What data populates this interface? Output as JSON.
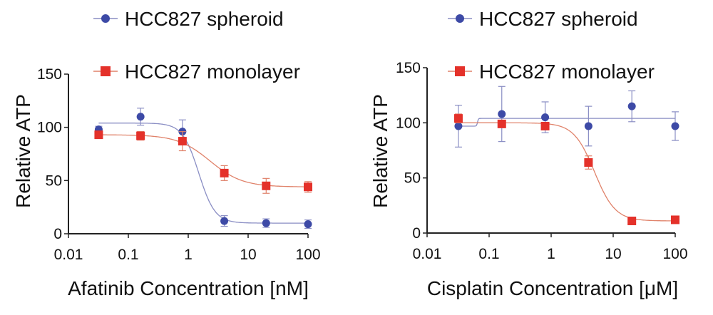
{
  "chart_data": [
    {
      "type": "line",
      "xlabel": "Afatinib Concentration [nM]",
      "ylabel": "Relative ATP",
      "xscale": "log",
      "xlim": [
        0.01,
        100
      ],
      "ylim": [
        0,
        150
      ],
      "xticks": [
        "0.01",
        "0.1",
        "1",
        "10",
        "100"
      ],
      "yticks": [
        "0",
        "50",
        "100",
        "150"
      ],
      "grid": false,
      "legend_placement": "top",
      "x": [
        0.032,
        0.16,
        0.8,
        4,
        20,
        100
      ],
      "series": [
        {
          "name": "HCC827 spheroid",
          "color": "#3d4aa6",
          "line_color": "#8a8ec4",
          "marker": "circle",
          "values": [
            98,
            110,
            96,
            12,
            10,
            9
          ],
          "errors": [
            3,
            8,
            11,
            5,
            4,
            4
          ],
          "fit": {
            "top": 104,
            "bottom": 10,
            "ic50": 1.5,
            "hill": 3.2
          }
        },
        {
          "name": "HCC827 monolayer",
          "color": "#e4312a",
          "line_color": "#e0826a",
          "marker": "square",
          "values": [
            93,
            92,
            87,
            57,
            45,
            44
          ],
          "errors": [
            3,
            4,
            9,
            7,
            7,
            5
          ],
          "fit": {
            "top": 93,
            "bottom": 44,
            "ic50": 2.3,
            "hill": 1.6
          }
        }
      ]
    },
    {
      "type": "line",
      "xlabel": "Cisplatin Concentration [μM]",
      "ylabel": "Relative ATP",
      "xscale": "log",
      "xlim": [
        0.01,
        100
      ],
      "ylim": [
        0,
        150
      ],
      "xticks": [
        "0.01",
        "0.1",
        "1",
        "10",
        "100"
      ],
      "yticks": [
        "0",
        "50",
        "100",
        "150"
      ],
      "grid": false,
      "legend_placement": "top",
      "x": [
        0.032,
        0.16,
        0.8,
        4,
        20,
        100
      ],
      "series": [
        {
          "name": "HCC827 spheroid",
          "color": "#3d4aa6",
          "line_color": "#8a8ec4",
          "marker": "circle",
          "values": [
            97,
            108,
            105,
            97,
            115,
            97
          ],
          "errors": [
            19,
            25,
            14,
            18,
            14,
            13
          ],
          "fit": {
            "top": 104,
            "bottom": 97,
            "ic50": 0.065,
            "hill": -60
          }
        },
        {
          "name": "HCC827 monolayer",
          "color": "#e4312a",
          "line_color": "#e0826a",
          "marker": "square",
          "values": [
            104,
            99,
            97,
            64,
            11,
            12
          ],
          "errors": [
            4,
            3,
            3,
            6,
            1,
            1
          ],
          "fit": {
            "top": 100,
            "bottom": 11,
            "ic50": 5,
            "hill": 2.6
          }
        }
      ]
    }
  ]
}
